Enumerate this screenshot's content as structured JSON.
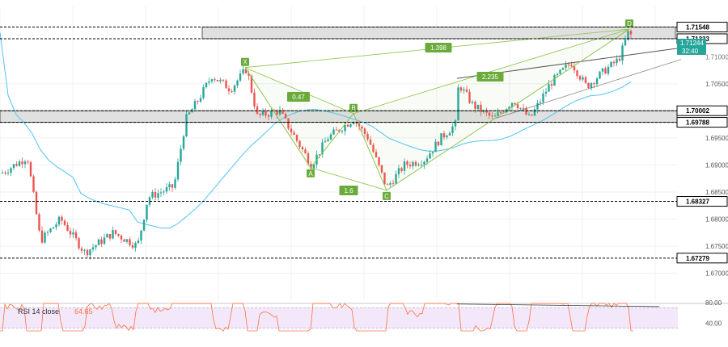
{
  "colors": {
    "up": "#26a69a",
    "down": "#ef5350",
    "candle_body_up": "#26a69a",
    "candle_body_down": "#ef5350",
    "ma": "#4fc3f7",
    "pattern": "#8bc34a",
    "pattern_label_bg": "#6aab3c",
    "trendline": "#555555",
    "zone_fill": "#e0e0e0",
    "zone_border": "#333333",
    "rsi_line": "#ff7043",
    "rsi_band": "#e9d5f5",
    "price_tag": "#26a69a",
    "grid": "#f0f0f0"
  },
  "price_axis": {
    "ticks": [
      "1.70500",
      "1.69500",
      "1.69000",
      "1.68500",
      "1.68000",
      "1.67500",
      "1.67000"
    ],
    "levels": [
      {
        "label": "1.71548",
        "value": 1.71548
      },
      {
        "label": "1.71333",
        "value": 1.71333
      },
      {
        "label": "1.70002",
        "value": 1.70002
      },
      {
        "label": "1.69788",
        "value": 1.69788
      },
      {
        "label": "1.68327",
        "value": 1.68327
      },
      {
        "label": "1.67279",
        "value": 1.67279
      }
    ],
    "current_price": "1.71244",
    "countdown": "32:40",
    "partial_label": "1.71000"
  },
  "pattern": {
    "points": [
      {
        "label": "X",
        "value": 1.708
      },
      {
        "label": "A",
        "value": 1.6895
      },
      {
        "label": "B",
        "value": 1.6995
      },
      {
        "label": "C",
        "value": 1.6853
      },
      {
        "label": "D",
        "value": 1.7151
      }
    ],
    "ratios": [
      "0.47",
      "1.6",
      "1.398",
      "2.235"
    ]
  },
  "rsi": {
    "title": "RSI 14 close",
    "value": "64.65",
    "ticks": [
      "80.00",
      "40.00"
    ],
    "upper": 70,
    "lower": 30
  },
  "chart_data": {
    "type": "candlestick",
    "series": [
      {
        "name": "RSI 14 close",
        "kind": "rsi"
      }
    ],
    "levels": [
      1.71548,
      1.71333,
      1.70002,
      1.69788,
      1.68327,
      1.67279
    ],
    "ylim": [
      1.6665,
      1.7175
    ],
    "pattern_points": [
      {
        "label": "X",
        "y": 1.708
      },
      {
        "label": "A",
        "y": 1.6895
      },
      {
        "label": "B",
        "y": 1.6995
      },
      {
        "label": "C",
        "y": 1.6853
      },
      {
        "label": "D",
        "y": 1.7151
      }
    ]
  }
}
